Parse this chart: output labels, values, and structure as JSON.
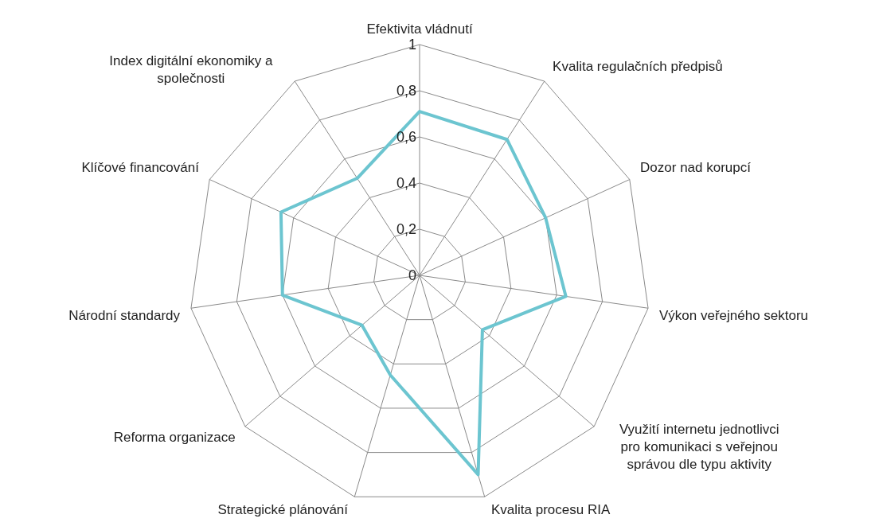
{
  "chart_data": {
    "type": "radar",
    "categories": [
      "Efektivita vládnutí",
      "Kvalita regulačních předpisů",
      "Dozor nad korupcí",
      "Výkon veřejného sektoru",
      "Využití internetu jednotlivci pro komunikaci s veřejnou správou dle typu aktivity",
      "Kvalita procesu RIA",
      "Strategické plánování",
      "Reforma organizace",
      "Národní standardy",
      "Klíčové financování",
      "Index digitální ekonomiky a společnosti"
    ],
    "series": [
      {
        "color": "#6cc5d0",
        "values": [
          0.71,
          0.7,
          0.6,
          0.64,
          0.36,
          0.9,
          0.45,
          0.33,
          0.6,
          0.66,
          0.5
        ]
      }
    ],
    "ylim": [
      0,
      1
    ],
    "yticks": [
      0,
      {
        "value": 0.2,
        "label": "0,2"
      },
      {
        "value": 0.4,
        "label": "0,4"
      },
      {
        "value": 0.6,
        "label": "0,6"
      },
      {
        "value": 0.8,
        "label": "0,8"
      },
      1
    ],
    "grid": true,
    "legend": false,
    "marker": "none",
    "line_style": "solid"
  }
}
